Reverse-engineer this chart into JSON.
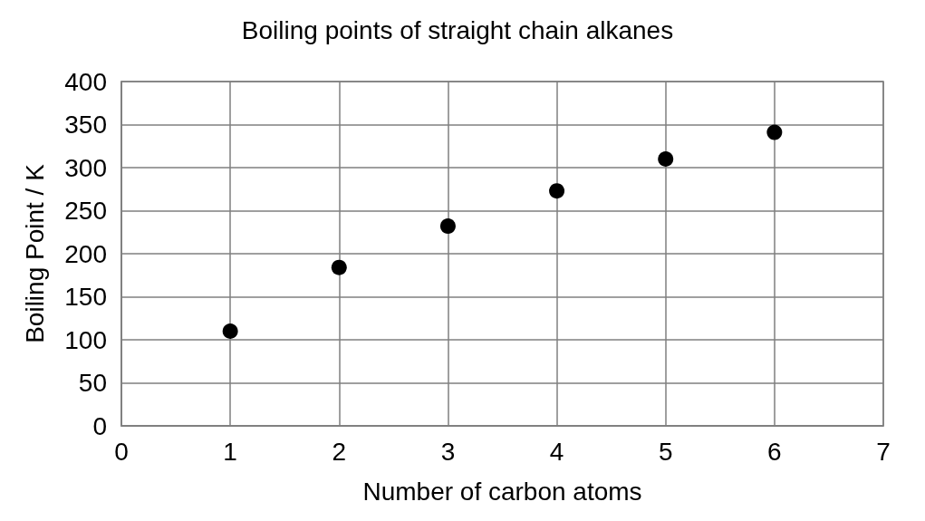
{
  "chart_data": {
    "type": "scatter",
    "title": "Boiling points of straight chain alkanes",
    "xlabel": "Number of carbon atoms",
    "ylabel": "Boiling Point / K",
    "x": [
      1,
      2,
      3,
      4,
      5,
      6
    ],
    "values": [
      110,
      184,
      232,
      273,
      310,
      341
    ],
    "color": "#000000",
    "xlim": [
      0,
      7
    ],
    "xticks": [
      0,
      1,
      2,
      3,
      4,
      5,
      6,
      7
    ],
    "ylim": [
      0,
      400
    ],
    "yticks": [
      0,
      50,
      100,
      150,
      200,
      250,
      300,
      350,
      400
    ],
    "grid": true,
    "marker": "circle"
  }
}
